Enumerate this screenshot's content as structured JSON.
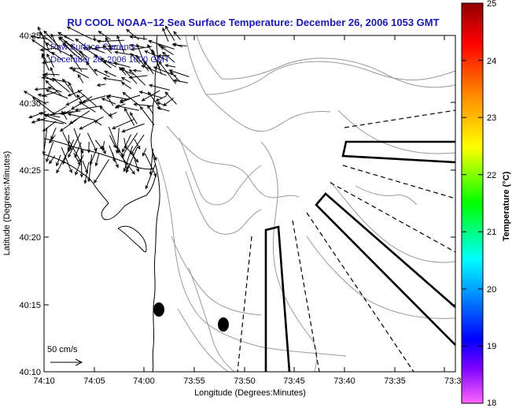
{
  "title": "RU COOL  NOAA−12  Sea Surface Temperature:  December 26, 2006 1053 GMT",
  "legend": {
    "line1": "Raw Surface Currents",
    "line2": "December 26, 2006 1000 GMT"
  },
  "scale_arrow_label": "50 cm/s",
  "xlabel": "Longitude (Degrees:Minutes)",
  "ylabel": "Latitude (Degrees:Minutes)",
  "x_ticks": [
    "74:10",
    "74:05",
    "74:00",
    "73:55",
    "73:50",
    "73:45",
    "73:40",
    "73:35",
    "73:3"
  ],
  "y_ticks": [
    "40:35",
    "40:30",
    "40:25",
    "40:20",
    "40:15",
    "40:10"
  ],
  "colorbar": {
    "title": "Temperature (°C)",
    "ticks": [
      "25",
      "24",
      "23",
      "22",
      "21",
      "20",
      "19",
      "18"
    ],
    "range": [
      18,
      25
    ],
    "colors": [
      "#ff66ff",
      "#7a00ff",
      "#0000ff",
      "#00ffff",
      "#00ff00",
      "#ffff00",
      "#ff8000",
      "#ff0000",
      "#900000"
    ]
  },
  "colors": {
    "title": "#1a1ab0",
    "coastline": "#000000",
    "contours": "#9a9a9a",
    "vectors": "#000000"
  },
  "features": [
    "coastline",
    "bathymetry-contours",
    "surface-current-vectors",
    "shipping-lanes",
    "buoy-markers"
  ]
}
